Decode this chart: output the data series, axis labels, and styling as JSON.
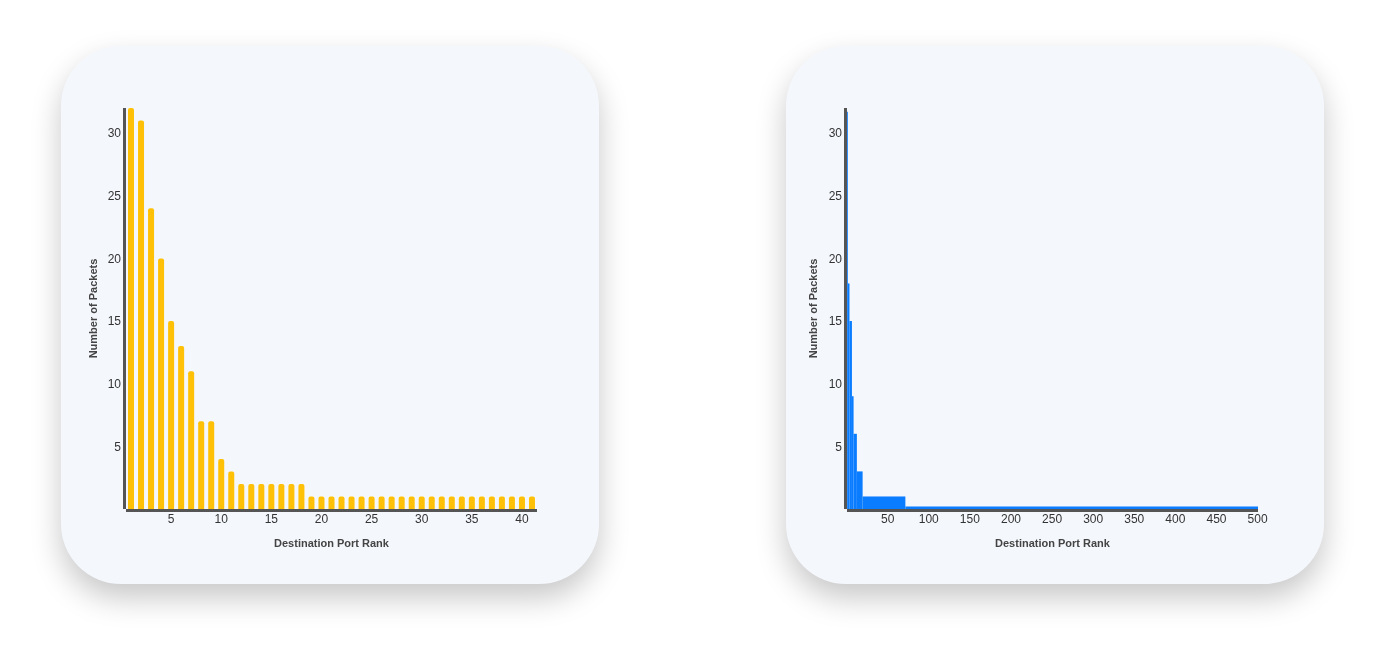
{
  "chart_data": [
    {
      "type": "bar",
      "x": [
        1,
        2,
        3,
        4,
        5,
        6,
        7,
        8,
        9,
        10,
        11,
        12,
        13,
        14,
        15,
        16,
        17,
        18,
        19,
        20,
        21,
        22,
        23,
        24,
        25,
        26,
        27,
        28,
        29,
        30,
        31,
        32,
        33,
        34,
        35,
        36,
        37,
        38,
        39,
        40,
        41
      ],
      "values": [
        32,
        31,
        24,
        20,
        15,
        13,
        11,
        7,
        7,
        4,
        3,
        2,
        2,
        2,
        2,
        2,
        2,
        2,
        1,
        1,
        1,
        1,
        1,
        1,
        1,
        1,
        1,
        1,
        1,
        1,
        1,
        1,
        1,
        1,
        1,
        1,
        1,
        1,
        1,
        1,
        1
      ],
      "color": "#ffc107",
      "xlim": [
        0.5,
        41.5
      ],
      "xticks": [
        5,
        10,
        15,
        20,
        25,
        30,
        35,
        40
      ],
      "ylim": [
        0,
        32
      ],
      "yticks": [
        5,
        10,
        15,
        20,
        25,
        30
      ],
      "xlabel": "Destination Port Rank",
      "ylabel": "Number of Packets"
    },
    {
      "type": "histogram",
      "bins": [
        0.5,
        1.5,
        3.5,
        6.5,
        8.5,
        12.5,
        19.5,
        71.5,
        500.5
      ],
      "values": [
        31.7,
        18,
        15,
        9,
        6,
        3,
        1,
        0.2
      ],
      "color": "#0a7cff",
      "xlim": [
        0.5,
        500.5
      ],
      "xticks": [
        50,
        100,
        150,
        200,
        250,
        300,
        350,
        400,
        450,
        500
      ],
      "ylim": [
        0,
        32
      ],
      "yticks": [
        5,
        10,
        15,
        20,
        25,
        30
      ],
      "xlabel": "Destination Port Rank",
      "ylabel": "Number of Packets"
    }
  ]
}
